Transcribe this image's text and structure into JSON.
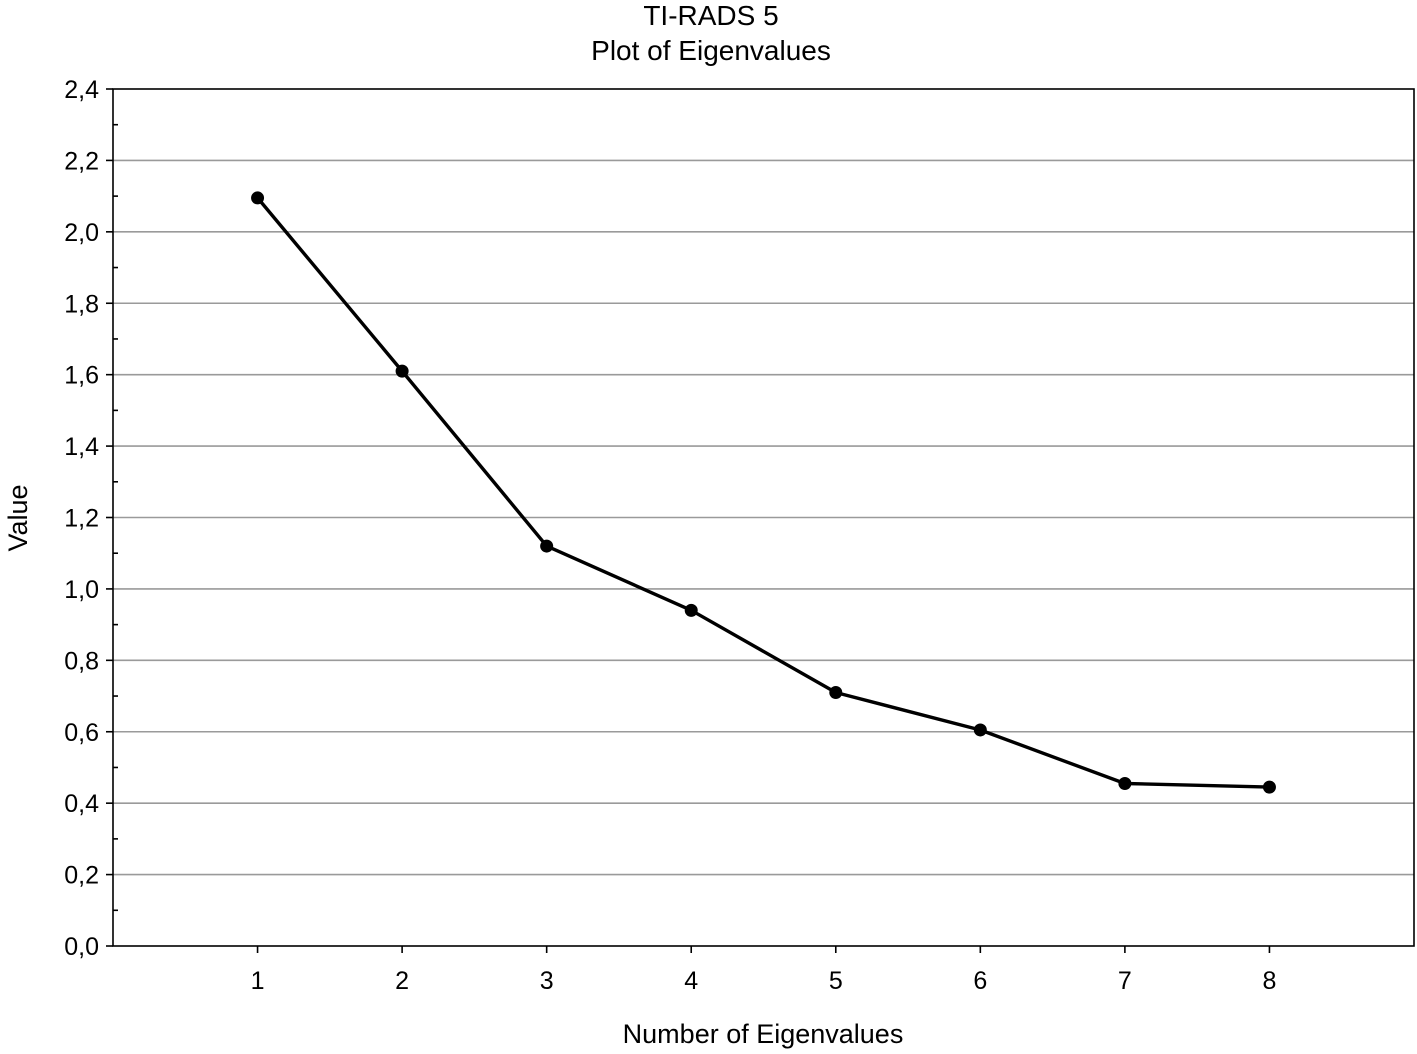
{
  "chart_data": {
    "type": "line",
    "title": "TI-RADS 5",
    "subtitle": "Plot of Eigenvalues",
    "xlabel": "Number of Eigenvalues",
    "ylabel": "Value",
    "x": [
      1,
      2,
      3,
      4,
      5,
      6,
      7,
      8
    ],
    "x_tick_labels": [
      "1",
      "2",
      "3",
      "4",
      "5",
      "6",
      "7",
      "8"
    ],
    "xlim": [
      0,
      9
    ],
    "ylim": [
      0,
      2.4
    ],
    "y_ticks": [
      0,
      0.2,
      0.4,
      0.6,
      0.8,
      1.0,
      1.2,
      1.4,
      1.6,
      1.8,
      2.0,
      2.2,
      2.4
    ],
    "y_tick_labels": [
      "0,0",
      "0,2",
      "0,4",
      "0,6",
      "0,8",
      "1,0",
      "1,2",
      "1,4",
      "1,6",
      "1,8",
      "2,0",
      "2,2",
      "2,4"
    ],
    "series": [
      {
        "values": [
          2.095,
          1.61,
          1.12,
          0.94,
          0.71,
          0.605,
          0.455,
          0.445
        ]
      }
    ],
    "grid": true,
    "legend": "none",
    "colors": {
      "line": "#000000",
      "grid": "#9a9a9a",
      "frame": "#000000"
    }
  }
}
